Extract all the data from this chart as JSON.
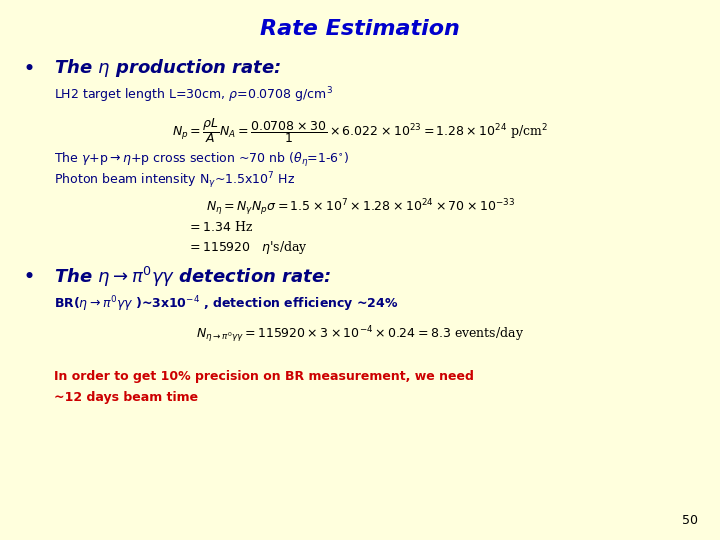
{
  "title": "Rate Estimation",
  "title_color": "#0000CC",
  "title_fontsize": 16,
  "bg_color": "#FFFFDD",
  "slide_number": "50",
  "bullet1_header": "The $\\eta$ production rate:",
  "bullet1_sub": "LH2 target length L=30cm, $\\rho$=0.0708 g/cm$^3$",
  "eq1": "$N_p = \\dfrac{\\rho L}{A} N_A = \\dfrac{0.0708\\times30}{1}\\times6.022\\times10^{23} = 1.28\\times10^{24}$ p/cm$^2$",
  "cross_section_line": "The $\\gamma$+p$\\rightarrow$$\\eta$+p cross section ~70 nb ($\\theta_{\\eta}$=1-6$^{\\circ}$)",
  "photon_line": "Photon beam intensity N$_{\\gamma}$~1.5x10$^7$ Hz",
  "eq2a": "$N_{\\eta} = N_{\\gamma}N_p\\sigma = 1.5\\times10^7\\times1.28\\times10^{24}\\times70\\times10^{-33}$",
  "eq2b": "$= 1.34$ Hz",
  "eq2c": "$= 115920 \\quad \\eta$'s/day",
  "bullet2_header": "The $\\eta$$\\rightarrow$$\\pi^0\\gamma\\gamma$ detection rate:",
  "bullet2_sub": "BR($\\eta$$\\rightarrow$$\\pi^0\\gamma\\gamma$ )~3x10$^{-4}$ , detection efficiency ~24%",
  "eq3": "$N_{\\eta\\rightarrow\\pi^0\\gamma\\gamma} = 115920\\times3\\times10^{-4}\\times0.24 = 8.3$ events/day",
  "conclusion_line1": "In order to get 10% precision on BR measurement, we need",
  "conclusion_line2": "~12 days beam time",
  "conclusion_color": "#CC0000",
  "dark_blue": "#000080",
  "black": "#000000",
  "bullet_fontsize": 13,
  "sub_fontsize": 9,
  "eq_fontsize": 9,
  "small_fontsize": 8.5
}
